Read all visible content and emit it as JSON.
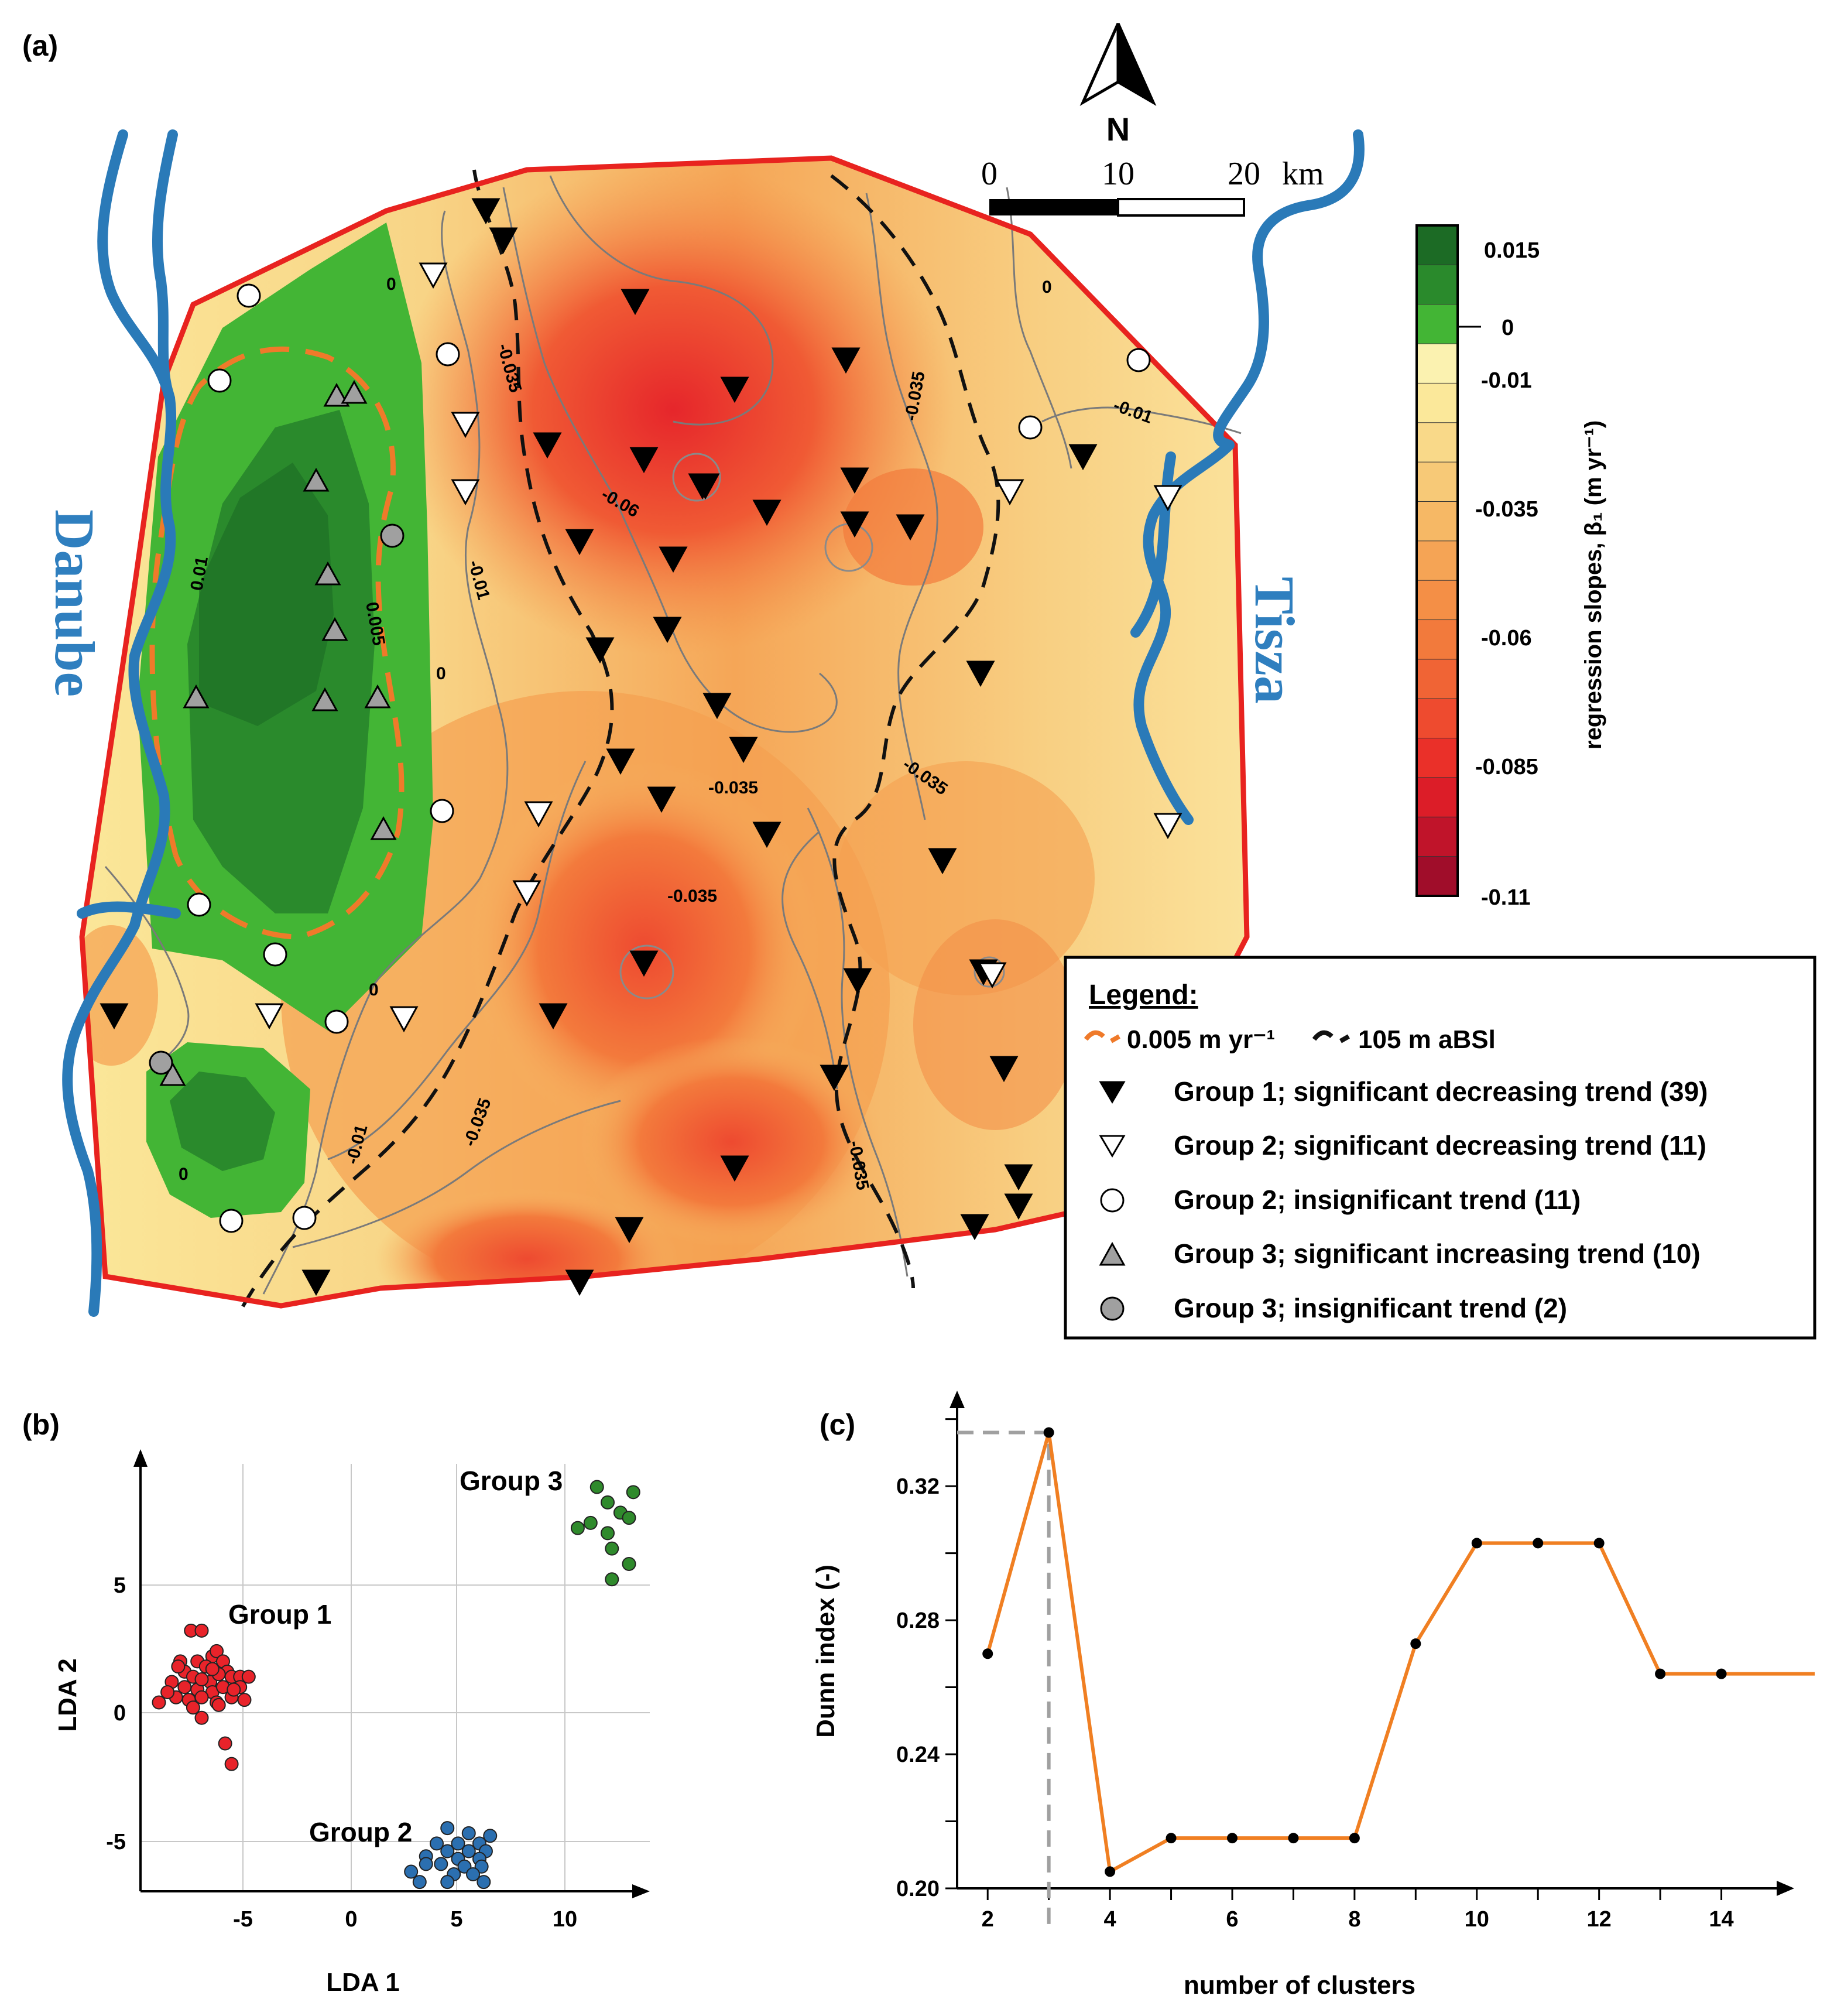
{
  "panels": {
    "a": "(a)",
    "b": "(b)",
    "c": "(c)"
  },
  "map": {
    "north": "N",
    "scale": {
      "t0": "0",
      "t1": "10",
      "t2": "20",
      "unit": "km"
    },
    "rivers": {
      "danube": "Danube",
      "tisza": "Tisza"
    },
    "contours": [
      "0",
      "0",
      "0",
      "0",
      "0",
      "0.01",
      "0.005",
      "-0.035",
      "-0.035",
      "-0.035",
      "-0.035",
      "-0.035",
      "-0.06",
      "-0.01",
      "-0.01",
      "-0.01",
      "-0.035",
      "-0.035"
    ],
    "colorbar": {
      "title": "regression slopes, β₁ (m yr⁻¹)",
      "ticks": [
        "0.015",
        "0",
        "-0.01",
        "-0.035",
        "-0.06",
        "-0.085",
        "-0.11"
      ],
      "colors": [
        "#1c6b25",
        "#2a8a2c",
        "#43b535",
        "#fbf2b0",
        "#fbe89a",
        "#f9d989",
        "#f7c977",
        "#f6b865",
        "#f5a455",
        "#f48f46",
        "#f27a3c",
        "#f06435",
        "#ee4b2f",
        "#ea3029",
        "#dc1d28",
        "#c0142a",
        "#a00d2a"
      ]
    },
    "legend": {
      "title": "Legend:",
      "line1": "0.005 m yr⁻¹",
      "line2": "105 m aBSl",
      "items": [
        "Group 1; significant decreasing trend (39)",
        "Group 2; significant decreasing trend (11)",
        "Group 2; insignificant trend (11)",
        "Group 3; significant increasing trend (10)",
        "Group 3; insignificant trend (2)"
      ]
    },
    "colors": {
      "boundary": "#e8231f",
      "river": "#2a7ab8",
      "orange_dash": "#ef7a2a"
    }
  },
  "lda": {
    "xlabel": "LDA 1",
    "ylabel": "LDA 2",
    "xticks": [
      "-5",
      "0",
      "5",
      "10"
    ],
    "yticks": [
      "5",
      "0",
      "-5"
    ],
    "groups": [
      {
        "name": "Group 1",
        "color": "#e8232a"
      },
      {
        "name": "Group 2",
        "color": "#2b6fb0"
      },
      {
        "name": "Group 3",
        "color": "#2f8a2c"
      }
    ]
  },
  "chart_data": {
    "type": "line",
    "xlabel": "number of clusters",
    "ylabel": "Dunn index (-)",
    "x": [
      2,
      3,
      4,
      5,
      6,
      7,
      8,
      9,
      10,
      11,
      12,
      13,
      14
    ],
    "series": [
      {
        "values": [
          0.27,
          0.336,
          0.205,
          0.215,
          0.215,
          0.215,
          0.215,
          0.273,
          0.303,
          0.303,
          0.303,
          0.264,
          0.264
        ]
      }
    ],
    "xticks": [
      "2",
      "4",
      "6",
      "8",
      "10",
      "12",
      "14"
    ],
    "yticks": [
      "0.20",
      "0.24",
      "0.28",
      "0.32"
    ],
    "xlim": [
      1.5,
      15.0
    ],
    "ylim": [
      0.2,
      0.345
    ],
    "line_color": "#f07f22",
    "optimum_x": 3
  }
}
